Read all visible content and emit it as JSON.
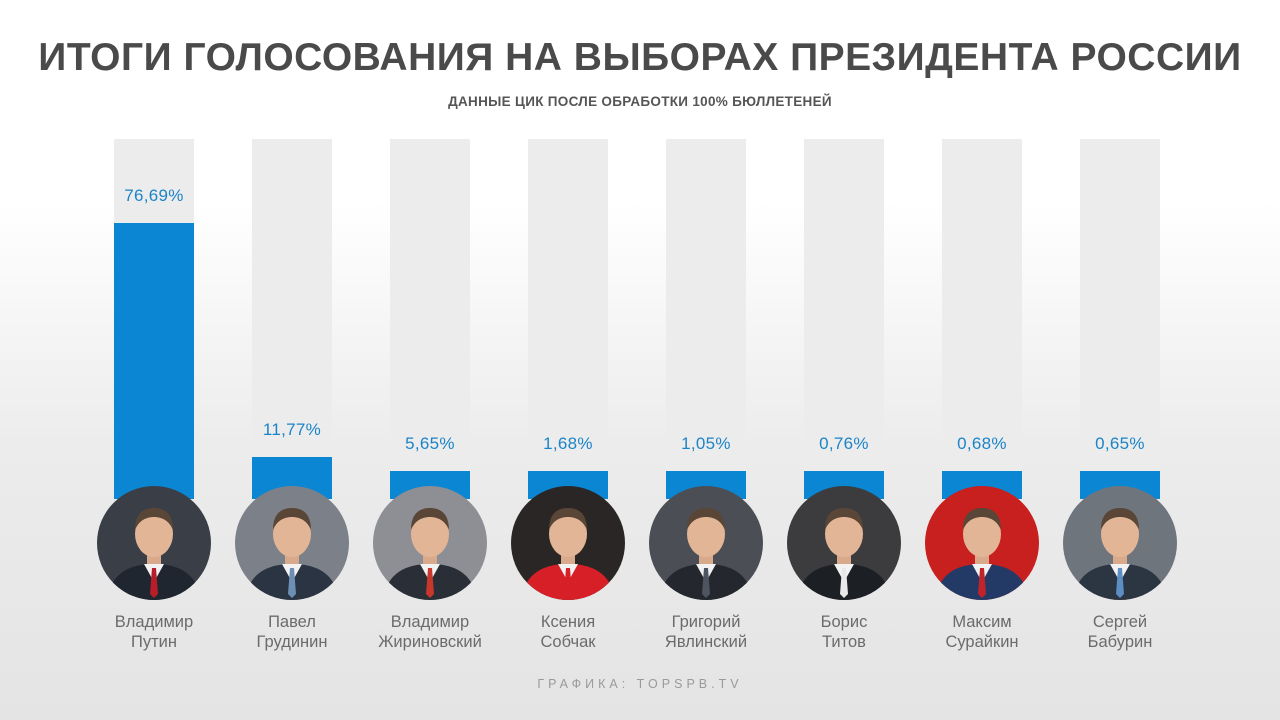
{
  "header": {
    "title": "ИТОГИ ГОЛОСОВАНИЯ НА ВЫБОРАХ ПРЕЗИДЕНТА РОССИИ",
    "subtitle": "ДАННЫЕ ЦИК ПОСЛЕ ОБРАБОТКИ 100% БЮЛЛЕТЕНЕЙ"
  },
  "footer": {
    "credit": "ГРАФИКА: TOPSPB.TV"
  },
  "colors": {
    "bar": "#0a86d2",
    "track": "#ececec",
    "value_text": "#1b84c9",
    "name_text": "#6b6b6b"
  },
  "candidates": [
    {
      "first_name": "Владимир",
      "last_name": "Путин",
      "value_label": "76,69%",
      "photo_bg": "#3a3f47",
      "suit": "#1f2630",
      "tie": "#b81e2a"
    },
    {
      "first_name": "Павел",
      "last_name": "Грудинин",
      "value_label": "11,77%",
      "photo_bg": "#7c8088",
      "suit": "#2b3442",
      "tie": "#6d8fb5"
    },
    {
      "first_name": "Владимир",
      "last_name": "Жириновский",
      "value_label": "5,65%",
      "photo_bg": "#8d8f94",
      "suit": "#2a2e36",
      "tie": "#c8372b"
    },
    {
      "first_name": "Ксения",
      "last_name": "Собчак",
      "value_label": "1,68%",
      "photo_bg": "#2a2626",
      "suit": "#d61f26",
      "tie": "#d61f26"
    },
    {
      "first_name": "Григорий",
      "last_name": "Явлинский",
      "value_label": "1,05%",
      "photo_bg": "#4b4f55",
      "suit": "#24282e",
      "tie": "#4f5560"
    },
    {
      "first_name": "Борис",
      "last_name": "Титов",
      "value_label": "0,76%",
      "photo_bg": "#3c3c3e",
      "suit": "#1c1f24",
      "tie": "#e8e8e8"
    },
    {
      "first_name": "Максим",
      "last_name": "Сурайкин",
      "value_label": "0,68%",
      "photo_bg": "#c8201e",
      "suit": "#243a66",
      "tie": "#c0232a"
    },
    {
      "first_name": "Сергей",
      "last_name": "Бабурин",
      "value_label": "0,65%",
      "photo_bg": "#6f757d",
      "suit": "#2c3542",
      "tie": "#5c8ec4"
    }
  ],
  "chart_data": {
    "type": "bar",
    "title": "ИТОГИ ГОЛОСОВАНИЯ НА ВЫБОРАХ ПРЕЗИДЕНТА РОССИИ",
    "subtitle": "ДАННЫЕ ЦИК ПОСЛЕ ОБРАБОТКИ 100% БЮЛЛЕТЕНЕЙ",
    "categories": [
      "Владимир Путин",
      "Павел Грудинин",
      "Владимир Жириновский",
      "Ксения Собчак",
      "Григорий Явлинский",
      "Борис Титов",
      "Максим Сурайкин",
      "Сергей Бабурин"
    ],
    "values": [
      76.69,
      11.77,
      5.65,
      1.68,
      1.05,
      0.76,
      0.68,
      0.65
    ],
    "value_labels": [
      "76,69%",
      "11,77%",
      "5,65%",
      "1,68%",
      "1,05%",
      "0,76%",
      "0,68%",
      "0,65%"
    ],
    "ylim": [
      0,
      100
    ],
    "xlabel": "",
    "ylabel": "",
    "grid": false,
    "legend": "none"
  }
}
